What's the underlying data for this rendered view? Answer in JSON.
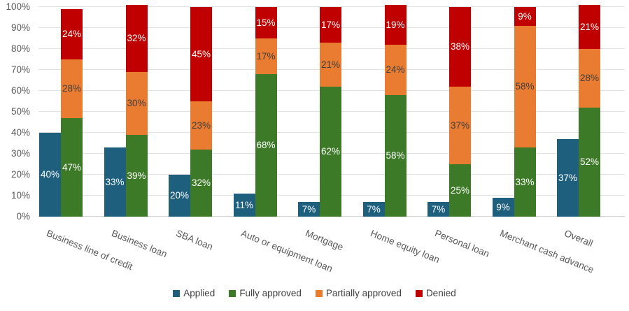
{
  "chart_data": {
    "type": "bar",
    "subtype": "applied bar beside 100% stacked approval-outcome bar, per category",
    "title": "",
    "xlabel": "",
    "ylabel": "",
    "ylim": [
      0,
      100
    ],
    "yticks": [
      0,
      10,
      20,
      30,
      40,
      50,
      60,
      70,
      80,
      90,
      100
    ],
    "ytick_suffix": "%",
    "grid": true,
    "legend_position": "bottom",
    "categories": [
      "Business line of credit",
      "Business loan",
      "SBA loan",
      "Auto or equipment loan",
      "Mortgage",
      "Home equity loan",
      "Personal loan",
      "Merchant cash advance",
      "Overall"
    ],
    "series": [
      {
        "name": "Applied",
        "role": "standalone",
        "color": "#1e5f7e",
        "label_color": "#ffffff",
        "values": [
          40,
          33,
          20,
          11,
          7,
          7,
          7,
          9,
          37
        ]
      },
      {
        "name": "Fully approved",
        "role": "stacked",
        "color": "#3d7a28",
        "label_color": "#ffffff",
        "values": [
          47,
          39,
          32,
          68,
          62,
          58,
          25,
          33,
          52
        ]
      },
      {
        "name": "Partially approved",
        "role": "stacked",
        "color": "#e97c31",
        "label_color": "#3f3f3f",
        "values": [
          28,
          30,
          23,
          17,
          21,
          24,
          37,
          58,
          28
        ]
      },
      {
        "name": "Denied",
        "role": "stacked",
        "color": "#c00000",
        "label_color": "#ffffff",
        "values": [
          24,
          32,
          45,
          15,
          17,
          19,
          38,
          9,
          21
        ]
      }
    ],
    "data_label_format": "{value}%"
  },
  "colors": {
    "background": "#ffffff",
    "gridline": "#e2e2e2",
    "axis_text": "#595959",
    "legend_text": "#404040"
  }
}
